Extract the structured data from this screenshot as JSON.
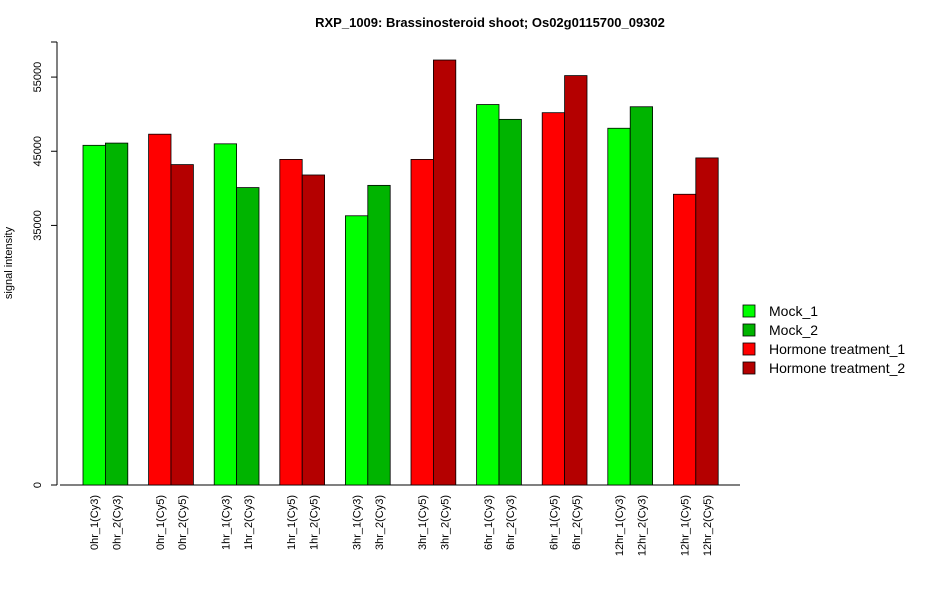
{
  "chart_data": {
    "type": "bar",
    "title": "RXP_1009: Brassinosteroid shoot; Os02g0115700_09302",
    "ylabel": "signal intensity",
    "xlabel": "",
    "ylim": [
      0,
      60000
    ],
    "yticks": [
      0,
      35000,
      45000,
      55000
    ],
    "ytick_labels": [
      "0",
      "35000",
      "45000",
      "55000"
    ],
    "grid": false,
    "legend_position": "right",
    "legend": [
      {
        "name": "Mock_1",
        "color": "#00ff00"
      },
      {
        "name": "Mock_2",
        "color": "#00b400"
      },
      {
        "name": "Hormone treatment_1",
        "color": "#ff0000"
      },
      {
        "name": "Hormone treatment_2",
        "color": "#b40000"
      }
    ],
    "groups": [
      {
        "bars": [
          {
            "label": "0hr_1(Cy3)",
            "value": 45800,
            "color": "#00ff00"
          },
          {
            "label": "0hr_2(Cy3)",
            "value": 46100,
            "color": "#00b400"
          }
        ]
      },
      {
        "bars": [
          {
            "label": "0hr_1(Cy5)",
            "value": 47300,
            "color": "#ff0000"
          },
          {
            "label": "0hr_2(Cy5)",
            "value": 43200,
            "color": "#b40000"
          }
        ]
      },
      {
        "bars": [
          {
            "label": "1hr_1(Cy3)",
            "value": 46000,
            "color": "#00ff00"
          },
          {
            "label": "1hr_2(Cy3)",
            "value": 40100,
            "color": "#00b400"
          }
        ]
      },
      {
        "bars": [
          {
            "label": "1hr_1(Cy5)",
            "value": 43900,
            "color": "#ff0000"
          },
          {
            "label": "1hr_2(Cy5)",
            "value": 41800,
            "color": "#b40000"
          }
        ]
      },
      {
        "bars": [
          {
            "label": "3hr_1(Cy3)",
            "value": 36300,
            "color": "#00ff00"
          },
          {
            "label": "3hr_2(Cy3)",
            "value": 40400,
            "color": "#00b400"
          }
        ]
      },
      {
        "bars": [
          {
            "label": "3hr_1(Cy5)",
            "value": 43900,
            "color": "#ff0000"
          },
          {
            "label": "3hr_2(Cy5)",
            "value": 57300,
            "color": "#b40000"
          }
        ]
      },
      {
        "bars": [
          {
            "label": "6hr_1(Cy3)",
            "value": 51300,
            "color": "#00ff00"
          },
          {
            "label": "6hr_2(Cy3)",
            "value": 49300,
            "color": "#00b400"
          }
        ]
      },
      {
        "bars": [
          {
            "label": "6hr_1(Cy5)",
            "value": 50200,
            "color": "#ff0000"
          },
          {
            "label": "6hr_2(Cy5)",
            "value": 55200,
            "color": "#b40000"
          }
        ]
      },
      {
        "bars": [
          {
            "label": "12hr_1(Cy3)",
            "value": 48100,
            "color": "#00ff00"
          },
          {
            "label": "12hr_2(Cy3)",
            "value": 51000,
            "color": "#00b400"
          }
        ]
      },
      {
        "bars": [
          {
            "label": "12hr_1(Cy5)",
            "value": 39200,
            "color": "#ff0000"
          },
          {
            "label": "12hr_2(Cy5)",
            "value": 44100,
            "color": "#b40000"
          }
        ]
      }
    ]
  }
}
